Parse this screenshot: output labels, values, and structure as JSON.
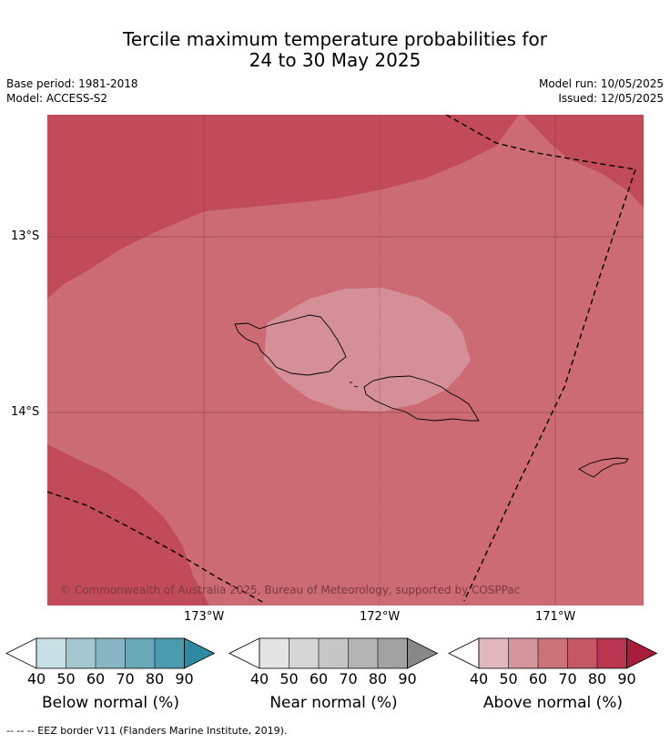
{
  "title_line1": "Tercile maximum temperature probabilities for",
  "title_line2": "24 to 30 May 2025",
  "base_period": "Base period: 1981-2018",
  "model": "Model: ACCESS-S2",
  "model_run": "Model run: 10/05/2025",
  "issued": "Issued: 12/05/2025",
  "map": {
    "lat_labels": [
      "13°S",
      "14°S"
    ],
    "lon_labels": [
      "173°W",
      "172°W",
      "171°W"
    ],
    "copyright": "© Commonwealth of Australia 2025, Bureau of Meteorology, supported by COSPPac",
    "colors": {
      "above_60_70": "#cc6b73",
      "above_70_80": "#c24b59",
      "above_50_60": "#d58f97"
    }
  },
  "colorbars": [
    {
      "label": "Below normal (%)",
      "ticks": [
        "40",
        "50",
        "60",
        "70",
        "80",
        "90"
      ],
      "colors": [
        "#c7e0e6",
        "#a4c8cf",
        "#88b6c2",
        "#6aa9b8",
        "#4c9cb0",
        "#2d8aa0"
      ]
    },
    {
      "label": "Near normal (%)",
      "ticks": [
        "40",
        "50",
        "60",
        "70",
        "80",
        "90"
      ],
      "colors": [
        "#e4e4e4",
        "#d6d6d6",
        "#c6c6c6",
        "#b4b4b4",
        "#a2a2a2",
        "#888888"
      ]
    },
    {
      "label": "Above normal (%)",
      "ticks": [
        "40",
        "50",
        "60",
        "70",
        "80",
        "90"
      ],
      "colors": [
        "#e1b8bd",
        "#d5959c",
        "#cc727a",
        "#c45864",
        "#b93550",
        "#a81c3c"
      ]
    }
  ],
  "footnote": "-- -- -- EEZ border V11 (Flanders Marine Institute, 2019)."
}
